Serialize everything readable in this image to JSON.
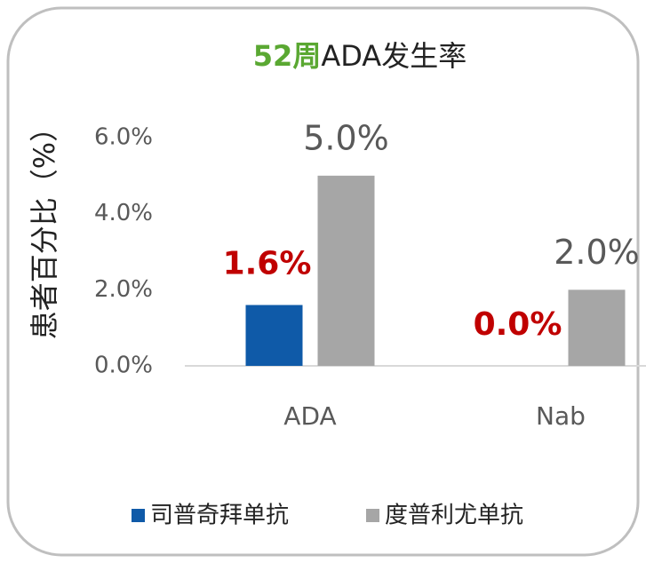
{
  "chart_data": {
    "type": "bar",
    "title_prefix": "52周",
    "title": "ADA发生率",
    "y_label": "患者百分比（%）",
    "categories": [
      "ADA",
      "Nab"
    ],
    "series": [
      {
        "name": "司普奇拜单抗",
        "color": "#0f5aa8",
        "values": [
          1.6,
          0.0
        ],
        "value_labels": [
          "1.6%",
          "0.0%"
        ]
      },
      {
        "name": "度普利尤单抗",
        "color": "#a6a6a6",
        "values": [
          5.0,
          2.0
        ],
        "value_labels": [
          "5.0%",
          "2.0%"
        ]
      }
    ],
    "ylim": [
      0,
      6
    ],
    "yticks": [
      {
        "value": 0,
        "label": "0.0%"
      },
      {
        "value": 2,
        "label": "2.0%"
      },
      {
        "value": 4,
        "label": "4.0%"
      },
      {
        "value": 6,
        "label": "6.0%"
      }
    ],
    "grid": false
  }
}
